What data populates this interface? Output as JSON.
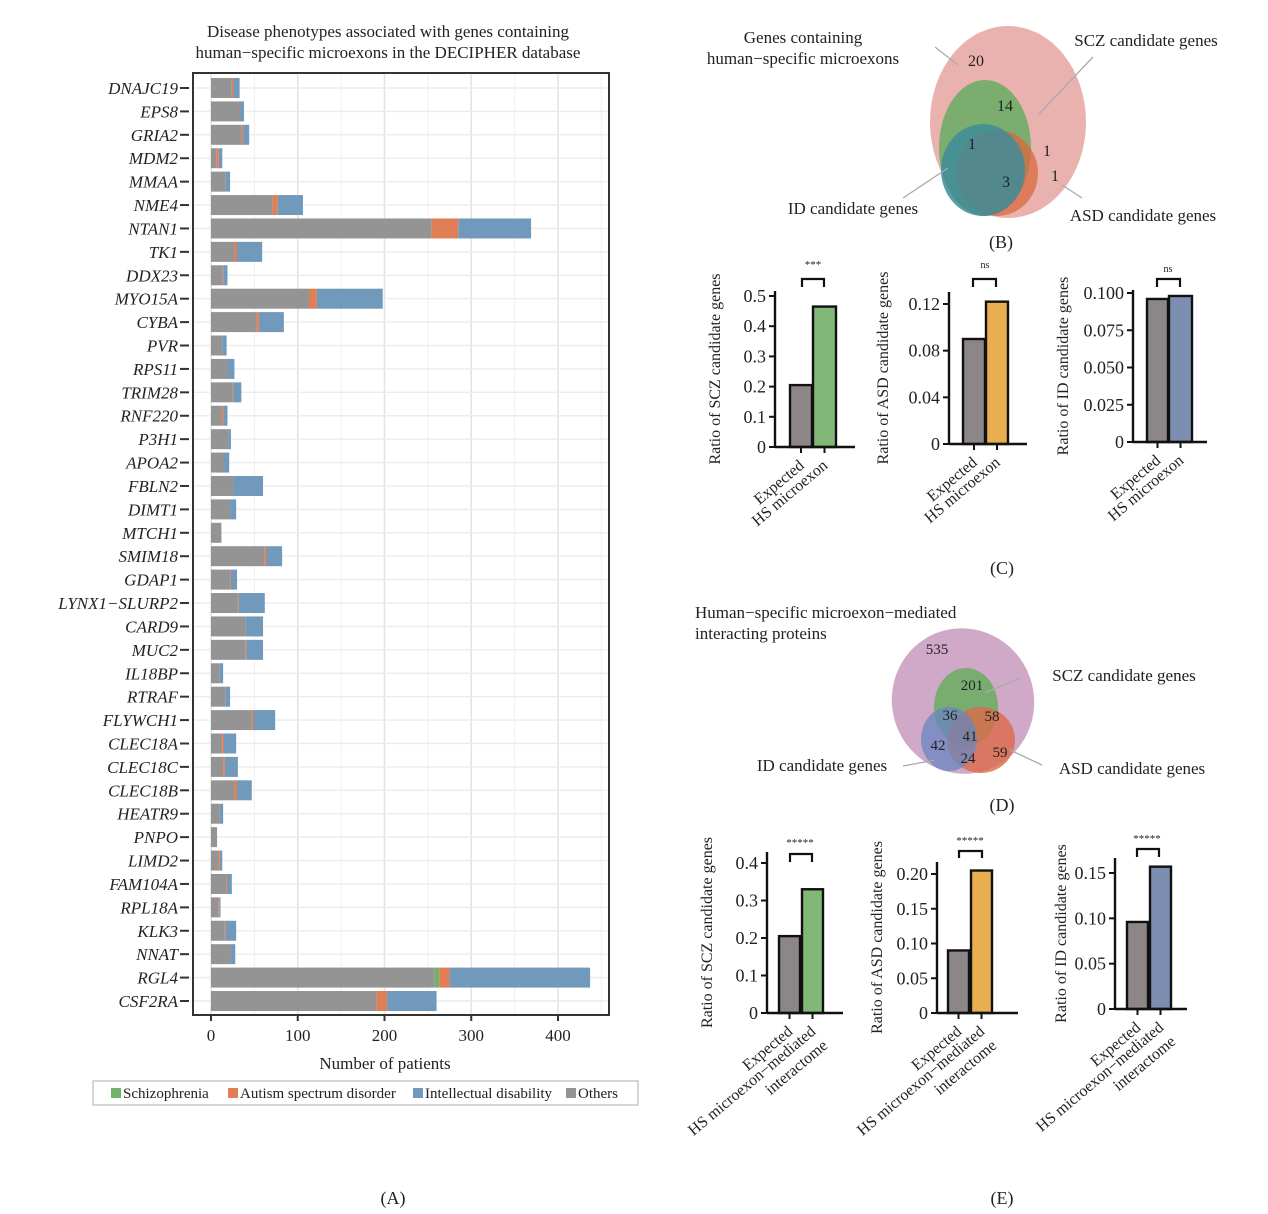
{
  "panel_labels": {
    "a": "(A)",
    "b": "(B)",
    "c": "(C)",
    "d": "(D)",
    "e": "(E)"
  },
  "colors": {
    "schizophrenia": "#6db36b",
    "asd": "#e07f55",
    "id": "#7199bc",
    "others": "#949494",
    "bar_expected": "#8c8686",
    "bar_scz": "#82b877",
    "bar_asd": "#e9ae4f",
    "bar_id": "#7c8fb0"
  },
  "chart_data": [
    {
      "type": "bar",
      "orientation": "horizontal",
      "stacked": true,
      "title": [
        "Disease phenotypes associated with genes containing",
        "human−specific microexons in the DECIPHER database"
      ],
      "xlabel": "Number of patients",
      "xlim": [
        0,
        450
      ],
      "xticks": [
        0,
        100,
        200,
        300,
        400
      ],
      "grid": true,
      "legend_position": "bottom",
      "legend": [
        {
          "name": "Schizophrenia",
          "key": "schizophrenia"
        },
        {
          "name": "Autism spectrum disorder",
          "key": "asd"
        },
        {
          "name": "Intellectual disability",
          "key": "id"
        },
        {
          "name": "Others",
          "key": "others"
        }
      ],
      "categories": [
        "DNAJC19",
        "EPS8",
        "GRIA2",
        "MDM2",
        "MMAA",
        "NME4",
        "NTAN1",
        "TK1",
        "DDX23",
        "MYO15A",
        "CYBA",
        "PVR",
        "RPS11",
        "TRIM28",
        "RNF220",
        "P3H1",
        "APOA2",
        "FBLN2",
        "DIMT1",
        "MTCH1",
        "SMIM18",
        "GDAP1",
        "LYNX1−SLURP2",
        "CARD9",
        "MUC2",
        "IL18BP",
        "RTRAF",
        "FLYWCH1",
        "CLEC18A",
        "CLEC18C",
        "CLEC18B",
        "HEATR9",
        "PNPO",
        "LIMD2",
        "FAM104A",
        "RPL18A",
        "KLK3",
        "NNAT",
        "RGL4",
        "CSF2RA"
      ],
      "series": [
        {
          "name": "Others",
          "key": "others",
          "values": [
            24,
            34,
            35,
            6,
            17,
            71,
            254,
            27,
            13,
            113,
            52,
            13,
            19,
            25,
            12,
            20,
            15,
            26,
            22,
            12,
            62,
            22,
            31,
            40,
            40,
            10,
            17,
            47,
            13,
            14,
            27,
            10,
            7,
            8,
            18,
            9,
            16,
            23,
            258,
            191
          ]
        },
        {
          "name": "Schizophrenia",
          "key": "schizophrenia",
          "values": [
            0,
            0,
            0,
            0,
            0,
            0,
            0,
            0,
            0,
            0,
            0,
            0,
            0,
            0,
            0,
            0,
            0,
            0,
            0,
            0,
            0,
            0,
            0,
            0,
            0,
            0,
            0,
            0,
            0,
            0,
            0,
            0,
            0,
            0,
            0,
            0,
            0,
            0,
            5,
            0
          ]
        },
        {
          "name": "Autism spectrum disorder",
          "key": "asd",
          "values": [
            2,
            0,
            2,
            3,
            0,
            6,
            31,
            3,
            1,
            9,
            3,
            0,
            0,
            1,
            2,
            0,
            0,
            0,
            0,
            0,
            2,
            1,
            1,
            0,
            1,
            0,
            0,
            2,
            2,
            2,
            3,
            0,
            0,
            2,
            1,
            1,
            1,
            0,
            12,
            12
          ]
        },
        {
          "name": "Intellectual disability",
          "key": "id",
          "values": [
            7,
            4,
            7,
            4,
            5,
            29,
            84,
            29,
            5,
            76,
            29,
            5,
            8,
            9,
            5,
            3,
            6,
            34,
            7,
            0,
            18,
            7,
            30,
            20,
            19,
            4,
            5,
            25,
            14,
            15,
            17,
            4,
            0,
            3,
            5,
            1,
            12,
            5,
            162,
            57
          ]
        }
      ]
    },
    {
      "type": "bar",
      "panel": "C",
      "ylabel": "Ratio of SCZ candidate genes",
      "categories": [
        [
          "Expected"
        ],
        [
          "HS microexon"
        ]
      ],
      "values": [
        0.205,
        0.465
      ],
      "ylim": [
        0,
        0.5
      ],
      "yticks": [
        "0",
        "0.1",
        "0.2",
        "0.3",
        "0.4",
        "0.5"
      ],
      "significance": "***",
      "colors": [
        "bar_expected",
        "bar_scz"
      ]
    },
    {
      "type": "bar",
      "panel": "C",
      "ylabel": "Ratio of ASD candidate genes",
      "categories": [
        [
          "Expected"
        ],
        [
          "HS microexon"
        ]
      ],
      "values": [
        0.09,
        0.122
      ],
      "ylim": [
        0,
        0.12
      ],
      "yticks": [
        "0",
        "0.04",
        "0.08",
        "0.12"
      ],
      "significance": "ns",
      "colors": [
        "bar_expected",
        "bar_asd"
      ]
    },
    {
      "type": "bar",
      "panel": "C",
      "ylabel": "Ratio of ID candidate genes",
      "categories": [
        [
          "Expected"
        ],
        [
          "HS microexon"
        ]
      ],
      "values": [
        0.096,
        0.098
      ],
      "ylim": [
        0,
        0.1
      ],
      "yticks": [
        "0",
        "0.025",
        "0.050",
        "0.075",
        "0.100"
      ],
      "significance": "ns",
      "colors": [
        "bar_expected",
        "bar_id"
      ]
    },
    {
      "type": "bar",
      "panel": "E",
      "ylabel": "Ratio of SCZ candidate genes",
      "categories": [
        [
          "Expected"
        ],
        [
          "HS microexon−mediated",
          "interactome"
        ]
      ],
      "values": [
        0.205,
        0.33
      ],
      "ylim": [
        0,
        0.4
      ],
      "yticks": [
        "0",
        "0.1",
        "0.2",
        "0.3",
        "0.4"
      ],
      "significance": "*****",
      "colors": [
        "bar_expected",
        "bar_scz"
      ]
    },
    {
      "type": "bar",
      "panel": "E",
      "ylabel": "Ratio of ASD candidate genes",
      "categories": [
        [
          "Expected"
        ],
        [
          "HS microexon−mediated",
          "interactome"
        ]
      ],
      "values": [
        0.09,
        0.205
      ],
      "ylim": [
        0,
        0.2
      ],
      "yticks": [
        "0",
        "0.05",
        "0.10",
        "0.15",
        "0.20"
      ],
      "significance": "*****",
      "colors": [
        "bar_expected",
        "bar_asd"
      ]
    },
    {
      "type": "bar",
      "panel": "E",
      "ylabel": "Ratio of ID candidate genes",
      "categories": [
        [
          "Expected"
        ],
        [
          "HS microexon−mediated",
          "interactome"
        ]
      ],
      "values": [
        0.096,
        0.157
      ],
      "ylim": [
        0,
        0.15
      ],
      "yticks": [
        "0",
        "0.05",
        "0.10",
        "0.15"
      ],
      "significance": "*****",
      "colors": [
        "bar_expected",
        "bar_id"
      ]
    }
  ],
  "venn_b": {
    "set_labels": {
      "main": [
        "Genes containing",
        "human−specific microexons"
      ],
      "scz": "SCZ candidate genes",
      "id": "ID candidate genes",
      "asd": "ASD candidate genes"
    },
    "counts": {
      "main_only": "20",
      "scz_only": "14",
      "scz_id": "1",
      "scz_asd": "1",
      "asd_only": "1",
      "scz_id_asd": "3"
    },
    "colors": {
      "main": "#e8aaa5",
      "scz": "#74ad6a",
      "id": "#3f8c99",
      "asd": "#d9683f"
    }
  },
  "venn_d": {
    "set_labels": {
      "main": [
        "Human−specific microexon−mediated",
        "interacting proteins"
      ],
      "scz": "SCZ candidate genes",
      "id": "ID candidate genes",
      "asd": "ASD candidate genes"
    },
    "counts": {
      "main_only": "535",
      "scz_only": "201",
      "scz_id": "36",
      "scz_asd": "58",
      "scz_id_asd": "41",
      "id_only": "42",
      "id_asd": "24",
      "asd_only": "59"
    },
    "colors": {
      "main": "#cda4c6",
      "scz": "#74ad6a",
      "id": "#6a86bf",
      "asd": "#db6a4a"
    }
  }
}
